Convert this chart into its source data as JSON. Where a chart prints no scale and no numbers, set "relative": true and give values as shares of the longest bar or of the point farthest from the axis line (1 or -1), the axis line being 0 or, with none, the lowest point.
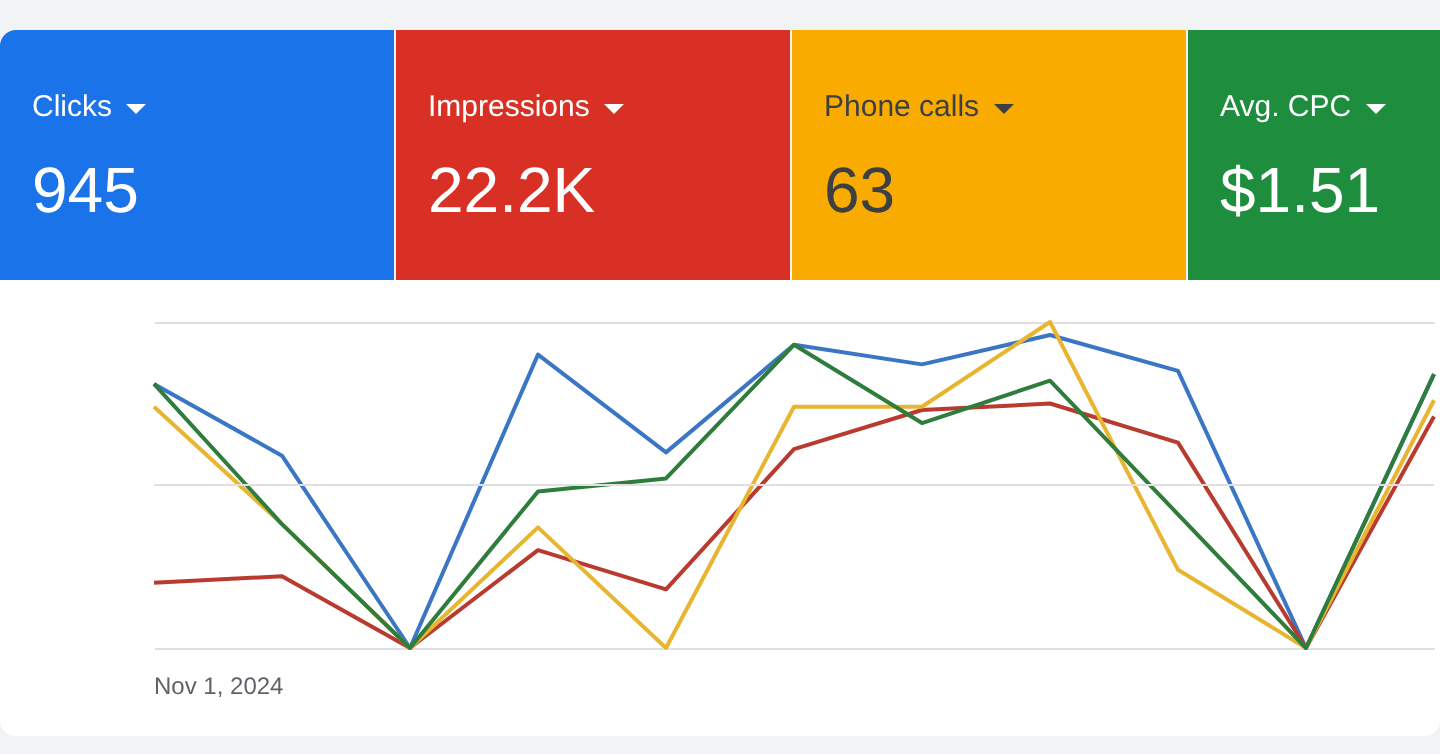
{
  "chart_data": [
    {
      "type": "other",
      "categories": [
        "Clicks",
        "Impressions",
        "Phone calls",
        "Avg. CPC"
      ],
      "value_labels": [
        "945",
        "22.2K",
        "63",
        "$1.51"
      ],
      "colors": [
        "#1a73e8",
        "#d93025",
        "#f9ab00",
        "#1e8e3e"
      ]
    },
    {
      "type": "line",
      "relative": true,
      "grid": "y",
      "legend": false,
      "annotations": [
        "Nov 1, 2024"
      ],
      "ref_lines": [
        {
          "axis": "y",
          "value": 0.5,
          "color": "#e0e0e0",
          "line_style": "solid"
        }
      ],
      "categories": [
        null,
        null,
        null,
        null,
        null,
        null,
        null,
        null,
        null,
        null,
        null
      ],
      "marker": "none",
      "line_style": "solid",
      "series": [
        {
          "color": "#3a76c4",
          "values": [
            0.81,
            0.59,
            0,
            0.9,
            0.6,
            0.93,
            0.87,
            0.96,
            0.85,
            0,
            0.84
          ]
        },
        {
          "color": "#b93b2f",
          "values": [
            0.2,
            0.22,
            0,
            0.3,
            0.18,
            0.61,
            0.73,
            0.75,
            0.63,
            0,
            0.71
          ]
        },
        {
          "color": "#e8b530",
          "values": [
            0.74,
            0.38,
            0,
            0.37,
            0,
            0.74,
            0.74,
            1,
            0.24,
            0,
            0.76
          ]
        },
        {
          "color": "#2e7d3c",
          "values": [
            0.81,
            0.38,
            0,
            0.48,
            0.52,
            0.93,
            0.69,
            0.82,
            0.41,
            0,
            0.84
          ]
        }
      ]
    }
  ]
}
